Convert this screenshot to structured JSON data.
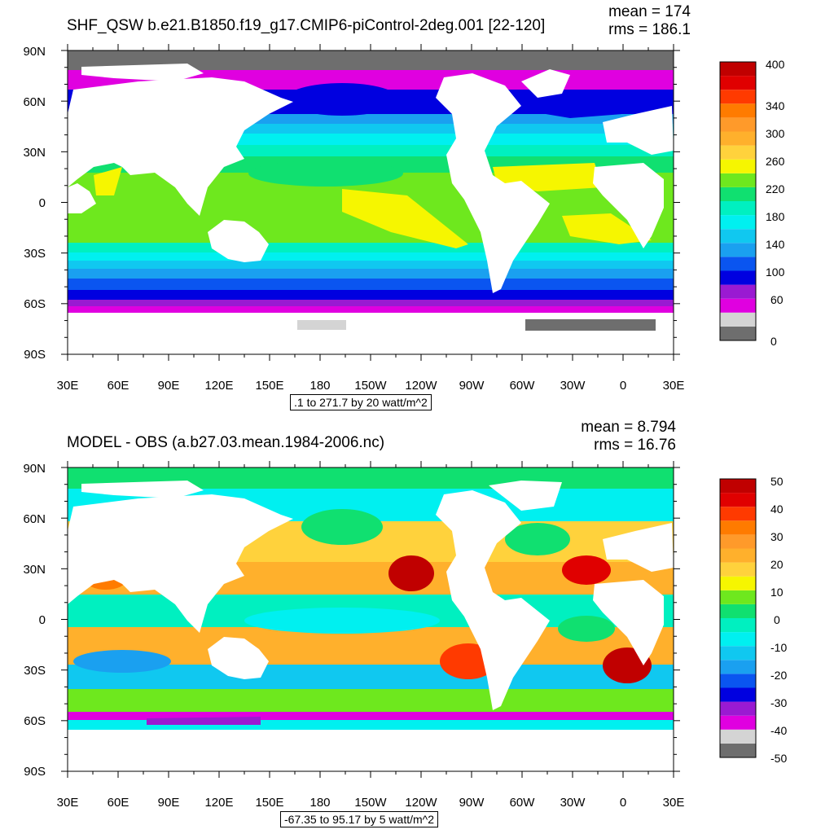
{
  "panels": [
    {
      "title": "SHF_QSW b.e21.B1850.f19_g17.CMIP6-piControl-2deg.001 [22-120]",
      "mean_label": "mean = 174",
      "rms_label": "rms = 186.1",
      "footer": ".1 to 271.7 by 20 watt/m^2",
      "lat_labels": [
        "90N",
        "60N",
        "30N",
        "0",
        "30S",
        "60S",
        "90S"
      ],
      "lon_labels": [
        "30E",
        "60E",
        "90E",
        "120E",
        "150E",
        "180",
        "150W",
        "120W",
        "90W",
        "60W",
        "30W",
        "0",
        "30E"
      ],
      "colorbar": {
        "colors": [
          "#6e6e6e",
          "#d4d4d4",
          "#e000e0",
          "#9a1ad2",
          "#0000e0",
          "#0a55f0",
          "#1aa0f0",
          "#10c8f0",
          "#00f0f0",
          "#00f0c0",
          "#10e070",
          "#6ee81e",
          "#f6f600",
          "#ffd23c",
          "#ffb02c",
          "#ff9a2a",
          "#ff7b00",
          "#ff3a00",
          "#e00000",
          "#c00000"
        ],
        "labels": [
          "0",
          "60",
          "100",
          "140",
          "180",
          "220",
          "260",
          "300",
          "340",
          "400"
        ]
      }
    },
    {
      "title": "MODEL - OBS (a.b27.03.mean.1984-2006.nc)",
      "mean_label": "mean = 8.794",
      "rms_label": "rms = 16.76",
      "footer": "-67.35 to 95.17 by 5 watt/m^2",
      "lat_labels": [
        "90N",
        "60N",
        "30N",
        "0",
        "30S",
        "60S",
        "90S"
      ],
      "lon_labels": [
        "30E",
        "60E",
        "90E",
        "120E",
        "150E",
        "180",
        "150W",
        "120W",
        "90W",
        "60W",
        "30W",
        "0",
        "30E"
      ],
      "colorbar": {
        "colors": [
          "#6e6e6e",
          "#d4d4d4",
          "#e000e0",
          "#9a1ad2",
          "#0000e0",
          "#0a55f0",
          "#1aa0f0",
          "#10c8f0",
          "#00f0f0",
          "#00f0c0",
          "#10e070",
          "#6ee81e",
          "#f6f600",
          "#ffd23c",
          "#ffb02c",
          "#ff9a2a",
          "#ff7b00",
          "#ff3a00",
          "#e00000",
          "#c00000"
        ],
        "labels": [
          "-50",
          "-40",
          "-30",
          "-20",
          "-10",
          "0",
          "10",
          "20",
          "30",
          "40",
          "50"
        ]
      }
    }
  ]
}
